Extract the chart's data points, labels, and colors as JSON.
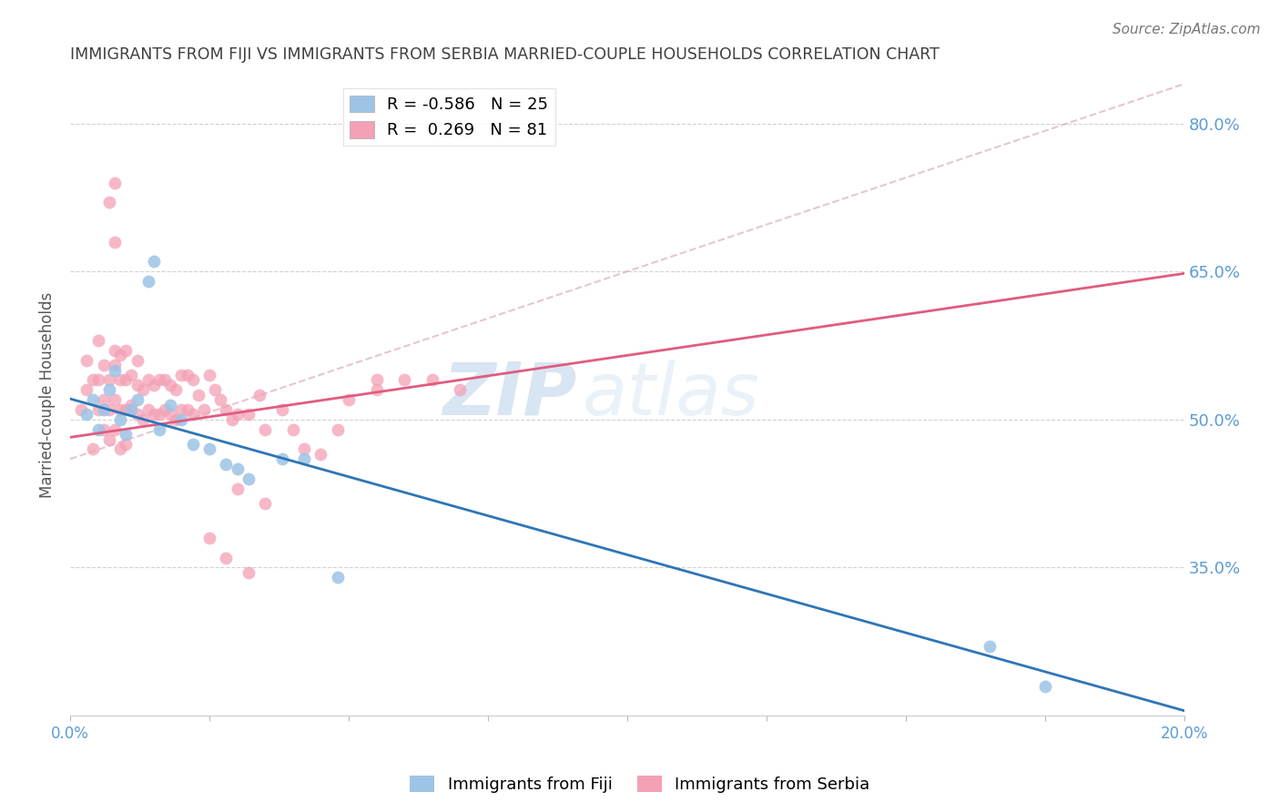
{
  "title": "IMMIGRANTS FROM FIJI VS IMMIGRANTS FROM SERBIA MARRIED-COUPLE HOUSEHOLDS CORRELATION CHART",
  "source": "Source: ZipAtlas.com",
  "ylabel": "Married-couple Households",
  "xlim": [
    0.0,
    0.2
  ],
  "ylim": [
    0.2,
    0.85
  ],
  "yticks": [
    0.35,
    0.5,
    0.65,
    0.8
  ],
  "ytick_labels": [
    "35.0%",
    "50.0%",
    "65.0%",
    "80.0%"
  ],
  "xticks": [
    0.0,
    0.025,
    0.05,
    0.075,
    0.1,
    0.125,
    0.15,
    0.175,
    0.2
  ],
  "xtick_labels": [
    "0.0%",
    "",
    "",
    "",
    "",
    "",
    "",
    "",
    "20.0%"
  ],
  "fiji_R": -0.586,
  "fiji_N": 25,
  "serbia_R": 0.269,
  "serbia_N": 81,
  "fiji_color": "#9dc3e6",
  "serbia_color": "#f4a0b5",
  "fiji_line_color": "#2e75b6",
  "serbia_line_color": "#e05c80",
  "dashed_line_color": "#d4a0b5",
  "background_color": "#ffffff",
  "grid_color": "#cccccc",
  "axis_label_color": "#5b9bd5",
  "title_color": "#404040",
  "watermark_zip": "ZIP",
  "watermark_atlas": "atlas",
  "fiji_line_x0": 0.0,
  "fiji_line_y0": 0.521,
  "fiji_line_x1": 0.2,
  "fiji_line_y1": 0.205,
  "serbia_line_x0": 0.0,
  "serbia_line_y0": 0.482,
  "serbia_line_x1": 0.2,
  "serbia_line_y1": 0.648,
  "dashed_line_x0": 0.0,
  "dashed_line_y0": 0.46,
  "dashed_line_x1": 0.2,
  "dashed_line_y1": 0.84,
  "fiji_scatter_x": [
    0.003,
    0.004,
    0.005,
    0.006,
    0.007,
    0.008,
    0.009,
    0.01,
    0.011,
    0.012,
    0.014,
    0.015,
    0.016,
    0.018,
    0.02,
    0.022,
    0.025,
    0.028,
    0.03,
    0.032,
    0.038,
    0.042,
    0.048,
    0.165,
    0.175
  ],
  "fiji_scatter_y": [
    0.505,
    0.52,
    0.49,
    0.51,
    0.53,
    0.55,
    0.5,
    0.485,
    0.51,
    0.52,
    0.64,
    0.66,
    0.49,
    0.515,
    0.5,
    0.475,
    0.47,
    0.455,
    0.45,
    0.44,
    0.46,
    0.46,
    0.34,
    0.27,
    0.23
  ],
  "serbia_scatter_x": [
    0.002,
    0.003,
    0.003,
    0.004,
    0.004,
    0.005,
    0.005,
    0.005,
    0.006,
    0.006,
    0.006,
    0.007,
    0.007,
    0.007,
    0.008,
    0.008,
    0.008,
    0.008,
    0.009,
    0.009,
    0.009,
    0.009,
    0.01,
    0.01,
    0.01,
    0.01,
    0.011,
    0.011,
    0.012,
    0.012,
    0.012,
    0.013,
    0.013,
    0.014,
    0.014,
    0.015,
    0.015,
    0.016,
    0.016,
    0.017,
    0.017,
    0.018,
    0.018,
    0.019,
    0.019,
    0.02,
    0.02,
    0.021,
    0.021,
    0.022,
    0.022,
    0.023,
    0.024,
    0.025,
    0.026,
    0.027,
    0.028,
    0.029,
    0.03,
    0.032,
    0.034,
    0.035,
    0.038,
    0.04,
    0.042,
    0.045,
    0.048,
    0.05,
    0.055,
    0.055,
    0.06,
    0.065,
    0.07,
    0.03,
    0.035,
    0.025,
    0.028,
    0.032,
    0.007,
    0.008,
    0.008
  ],
  "serbia_scatter_y": [
    0.51,
    0.53,
    0.56,
    0.47,
    0.54,
    0.54,
    0.58,
    0.51,
    0.49,
    0.52,
    0.555,
    0.48,
    0.51,
    0.54,
    0.49,
    0.52,
    0.555,
    0.57,
    0.47,
    0.51,
    0.54,
    0.565,
    0.475,
    0.51,
    0.54,
    0.57,
    0.515,
    0.545,
    0.505,
    0.535,
    0.56,
    0.5,
    0.53,
    0.51,
    0.54,
    0.505,
    0.535,
    0.505,
    0.54,
    0.51,
    0.54,
    0.505,
    0.535,
    0.5,
    0.53,
    0.51,
    0.545,
    0.51,
    0.545,
    0.505,
    0.54,
    0.525,
    0.51,
    0.545,
    0.53,
    0.52,
    0.51,
    0.5,
    0.505,
    0.505,
    0.525,
    0.49,
    0.51,
    0.49,
    0.47,
    0.465,
    0.49,
    0.52,
    0.53,
    0.54,
    0.54,
    0.54,
    0.53,
    0.43,
    0.415,
    0.38,
    0.36,
    0.345,
    0.72,
    0.68,
    0.74
  ]
}
